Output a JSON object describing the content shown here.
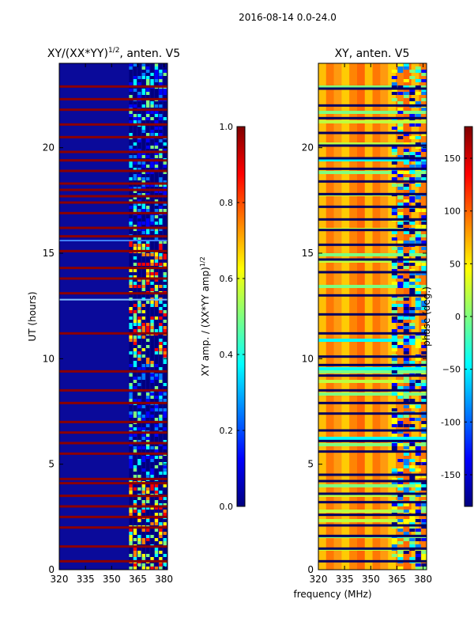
{
  "figure": {
    "suptitle": "2016-08-14 0.0-24.0",
    "xlabel": "frequency (MHz)",
    "ylabel": "UT (hours)"
  },
  "colormap": [
    "#00007f",
    "#0000ff",
    "#007fff",
    "#00ffff",
    "#7fff7f",
    "#ffff00",
    "#ff7f00",
    "#ff0000",
    "#7f0000"
  ],
  "chart_data": [
    {
      "type": "heatmap",
      "title_main": "XY/(XX*YY)",
      "title_exp": "1/2",
      "title_tail": ", anten. V5",
      "x": [
        320,
        335,
        350,
        365,
        380
      ],
      "xlim": [
        320,
        382
      ],
      "y": [
        0,
        5,
        10,
        15,
        20
      ],
      "ylim": [
        0,
        24
      ],
      "active_band_start_mhz": 360,
      "masked_rows_ut": [
        0.4,
        1.1,
        2.0,
        2.5,
        3.0,
        3.5,
        4.1,
        4.3,
        5.5,
        6.0,
        6.5,
        7.0,
        7.9,
        8.5,
        9.4,
        11.2,
        13.1,
        13.8,
        14.3,
        15.1,
        15.8,
        16.2,
        16.9,
        17.4,
        17.7,
        18.0,
        18.3,
        18.9,
        19.4,
        19.8,
        20.5,
        21.1,
        21.8,
        22.3,
        22.9
      ],
      "colorbar": {
        "label_main": "XY amp. / (XX*YY amp)",
        "label_exp": "1/2",
        "ticks": [
          "0.0",
          "0.2",
          "0.4",
          "0.6",
          "0.8",
          "1.0"
        ],
        "range": [
          0.0,
          1.0
        ]
      }
    },
    {
      "type": "heatmap",
      "title": "XY, anten. V5",
      "x": [
        320,
        335,
        350,
        365,
        380
      ],
      "xlim": [
        320,
        382
      ],
      "y": [
        0,
        5,
        10,
        15,
        20
      ],
      "ylim": [
        0,
        24
      ],
      "masked_rows_ut": [
        0.4,
        1.0,
        1.6,
        2.1,
        2.6,
        3.2,
        3.6,
        4.2,
        4.5,
        5.6,
        6.1,
        6.6,
        7.4,
        7.9,
        8.5,
        9.2,
        9.7,
        10.1,
        11.2,
        12.1,
        13.0,
        14.1,
        14.7,
        15.4,
        16.1,
        16.6,
        17.2,
        17.8,
        18.4,
        19.0,
        19.5,
        20.1,
        20.7,
        21.4,
        22.0,
        22.8
      ],
      "colorbar": {
        "label": "phase (deg.)",
        "ticks": [
          "-150",
          "-100",
          "−50",
          "0",
          "50",
          "100",
          "150"
        ],
        "range": [
          -180,
          180
        ]
      }
    }
  ]
}
